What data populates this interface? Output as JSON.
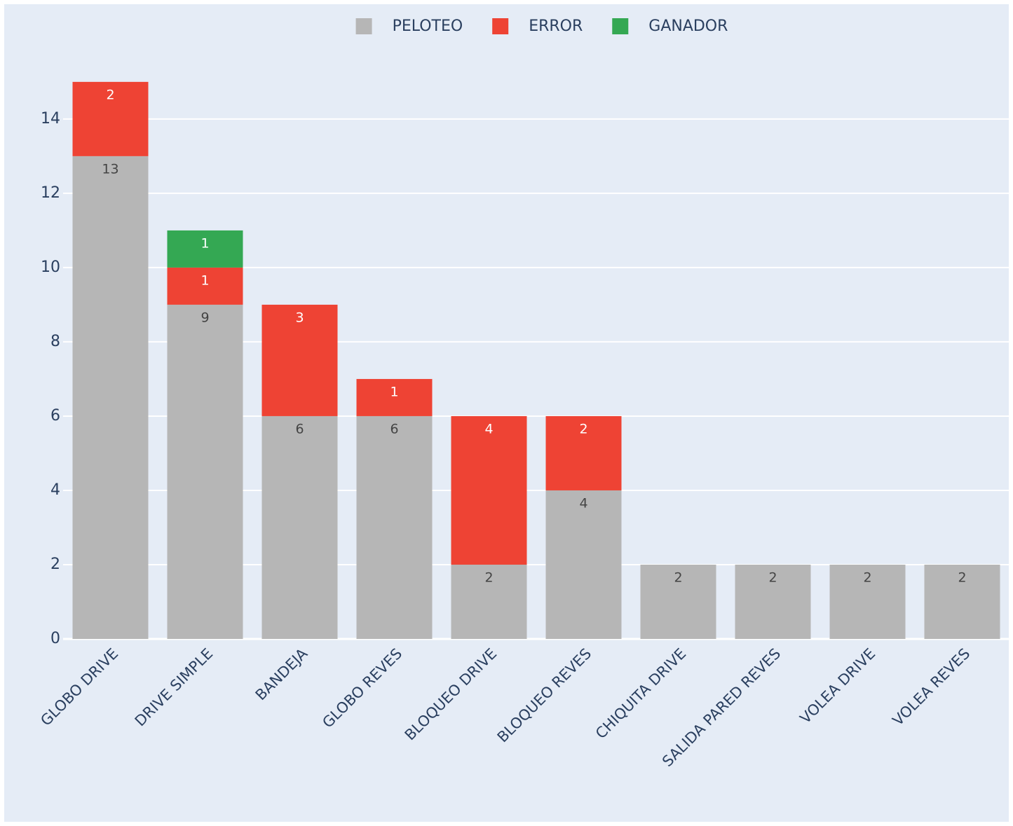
{
  "chart_data": {
    "type": "stacked_bar",
    "categories": [
      "GLOBO DRIVE",
      "DRIVE SIMPLE",
      "BANDEJA",
      "GLOBO REVES",
      "BLOQUEO DRIVE",
      "BLOQUEO REVES",
      "CHIQUITA DRIVE",
      "SALIDA PARED REVES",
      "VOLEA DRIVE",
      "VOLEA REVES"
    ],
    "series": [
      {
        "name": "PELOTEO",
        "color": "#b6b6b6",
        "label_color": "#444444",
        "values": [
          13,
          9,
          6,
          6,
          2,
          4,
          2,
          2,
          2,
          2
        ]
      },
      {
        "name": "ERROR",
        "color": "#ee4334",
        "label_color": "#ffffff",
        "values": [
          2,
          1,
          3,
          1,
          4,
          2,
          null,
          null,
          null,
          null
        ]
      },
      {
        "name": "GANADOR",
        "color": "#34a853",
        "label_color": "#ffffff",
        "values": [
          null,
          1,
          null,
          null,
          null,
          null,
          null,
          null,
          null,
          null
        ]
      }
    ],
    "ylim": [
      0,
      15.79
    ],
    "yticks": [
      0,
      2,
      4,
      6,
      8,
      10,
      12,
      14
    ],
    "grid": true,
    "legend": "top"
  }
}
